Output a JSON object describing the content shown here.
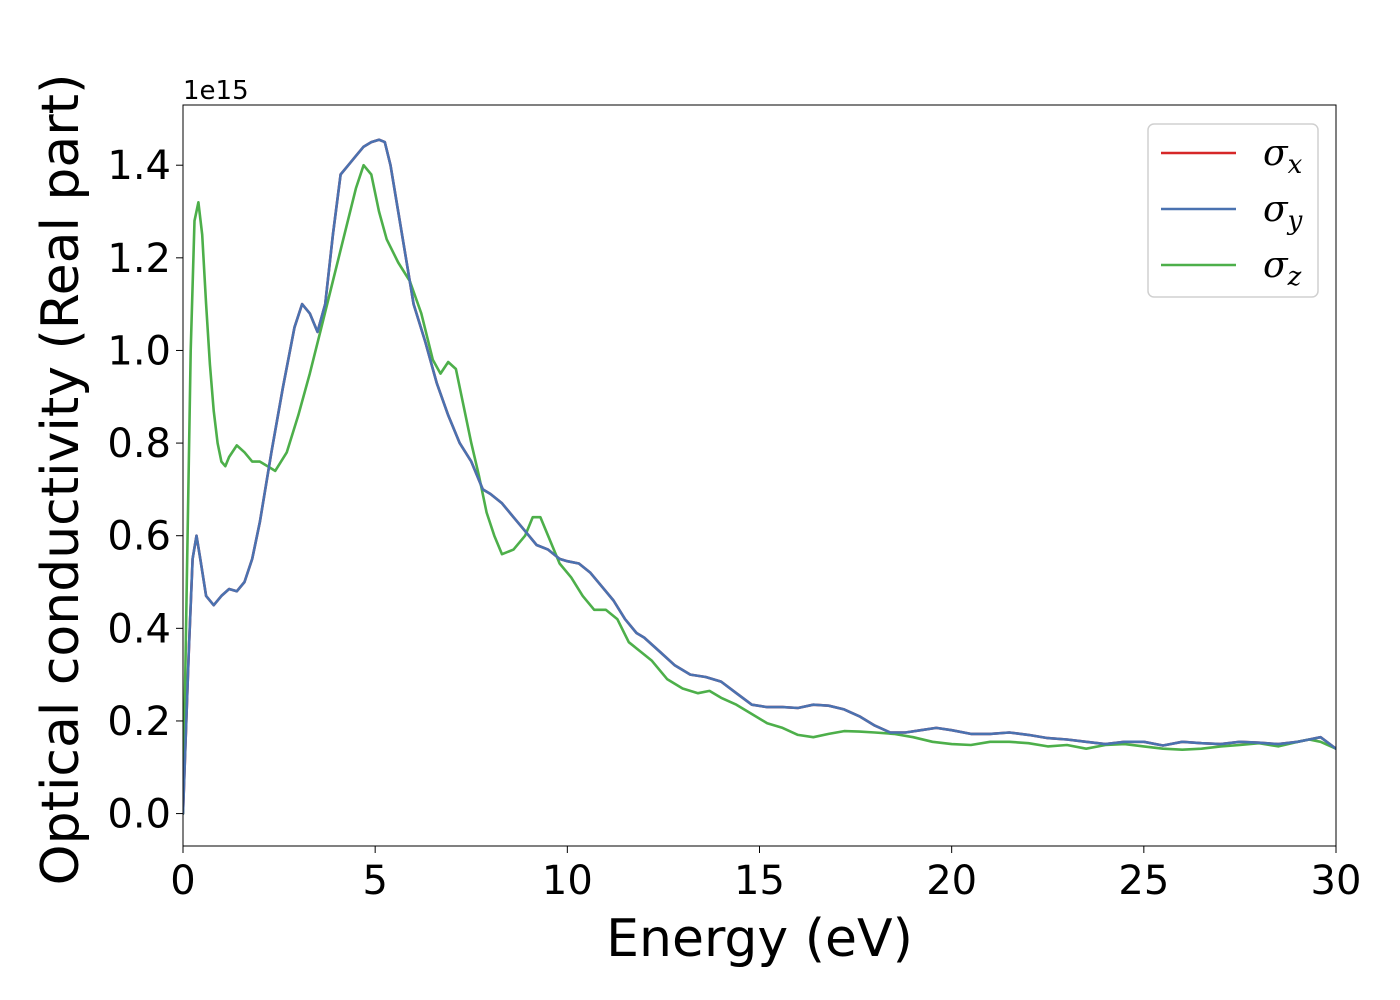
{
  "chart_data": {
    "type": "line",
    "xlabel": "Energy (eV)",
    "ylabel": "Optical conductivity (Real part)",
    "y_offset_text": "1e15",
    "xlim": [
      0,
      30
    ],
    "ylim": [
      -0.07,
      1.53
    ],
    "x_ticks": [
      0,
      5,
      10,
      15,
      20,
      25,
      30
    ],
    "x_tick_labels": [
      "0",
      "5",
      "10",
      "15",
      "20",
      "25",
      "30"
    ],
    "y_ticks": [
      0.0,
      0.2,
      0.4,
      0.6,
      0.8,
      1.0,
      1.2,
      1.4
    ],
    "y_tick_labels": [
      "0.0",
      "0.2",
      "0.4",
      "0.6",
      "0.8",
      "1.0",
      "1.2",
      "1.4"
    ],
    "grid": false,
    "legend_position": "top-right",
    "series": [
      {
        "name": "σ",
        "subscript": "x",
        "color": "#d62728",
        "x": [
          0,
          0.15,
          0.25,
          0.35,
          0.45,
          0.6,
          0.8,
          1.0,
          1.2,
          1.4,
          1.6,
          1.8,
          2.0,
          2.3,
          2.6,
          2.9,
          3.1,
          3.3,
          3.5,
          3.7,
          3.9,
          4.1,
          4.3,
          4.5,
          4.7,
          4.9,
          5.1,
          5.25,
          5.4,
          5.6,
          5.8,
          6.0,
          6.3,
          6.6,
          6.9,
          7.2,
          7.5,
          7.8,
          8.0,
          8.3,
          8.6,
          8.9,
          9.2,
          9.5,
          9.8,
          10.0,
          10.3,
          10.6,
          10.9,
          11.2,
          11.5,
          11.8,
          12.0,
          12.4,
          12.8,
          13.2,
          13.6,
          14.0,
          14.4,
          14.8,
          15.2,
          15.6,
          16.0,
          16.4,
          16.8,
          17.2,
          17.6,
          18.0,
          18.4,
          18.8,
          19.2,
          19.6,
          20.0,
          20.5,
          21.0,
          21.5,
          22.0,
          22.5,
          23.0,
          23.5,
          24.0,
          24.5,
          25.0,
          25.5,
          26.0,
          26.5,
          27.0,
          27.5,
          28.0,
          28.5,
          29.0,
          29.3,
          29.6,
          30.0
        ],
        "y": [
          0.0,
          0.35,
          0.55,
          0.6,
          0.55,
          0.47,
          0.45,
          0.47,
          0.485,
          0.48,
          0.5,
          0.55,
          0.63,
          0.78,
          0.92,
          1.05,
          1.1,
          1.08,
          1.04,
          1.1,
          1.25,
          1.38,
          1.4,
          1.42,
          1.44,
          1.45,
          1.455,
          1.45,
          1.4,
          1.3,
          1.2,
          1.1,
          1.02,
          0.93,
          0.86,
          0.8,
          0.76,
          0.7,
          0.69,
          0.67,
          0.64,
          0.61,
          0.58,
          0.57,
          0.55,
          0.545,
          0.54,
          0.52,
          0.49,
          0.46,
          0.42,
          0.39,
          0.38,
          0.35,
          0.32,
          0.3,
          0.295,
          0.285,
          0.26,
          0.235,
          0.23,
          0.23,
          0.228,
          0.235,
          0.233,
          0.225,
          0.21,
          0.19,
          0.175,
          0.175,
          0.18,
          0.185,
          0.18,
          0.172,
          0.172,
          0.175,
          0.17,
          0.163,
          0.16,
          0.155,
          0.15,
          0.155,
          0.155,
          0.147,
          0.155,
          0.152,
          0.15,
          0.155,
          0.153,
          0.15,
          0.155,
          0.16,
          0.165,
          0.14
        ]
      },
      {
        "name": "σ",
        "subscript": "y",
        "color": "#4a72b0",
        "x": [
          0,
          0.15,
          0.25,
          0.35,
          0.45,
          0.6,
          0.8,
          1.0,
          1.2,
          1.4,
          1.6,
          1.8,
          2.0,
          2.3,
          2.6,
          2.9,
          3.1,
          3.3,
          3.5,
          3.7,
          3.9,
          4.1,
          4.3,
          4.5,
          4.7,
          4.9,
          5.1,
          5.25,
          5.4,
          5.6,
          5.8,
          6.0,
          6.3,
          6.6,
          6.9,
          7.2,
          7.5,
          7.8,
          8.0,
          8.3,
          8.6,
          8.9,
          9.2,
          9.5,
          9.8,
          10.0,
          10.3,
          10.6,
          10.9,
          11.2,
          11.5,
          11.8,
          12.0,
          12.4,
          12.8,
          13.2,
          13.6,
          14.0,
          14.4,
          14.8,
          15.2,
          15.6,
          16.0,
          16.4,
          16.8,
          17.2,
          17.6,
          18.0,
          18.4,
          18.8,
          19.2,
          19.6,
          20.0,
          20.5,
          21.0,
          21.5,
          22.0,
          22.5,
          23.0,
          23.5,
          24.0,
          24.5,
          25.0,
          25.5,
          26.0,
          26.5,
          27.0,
          27.5,
          28.0,
          28.5,
          29.0,
          29.3,
          29.6,
          30.0
        ],
        "y": [
          0.0,
          0.35,
          0.55,
          0.6,
          0.55,
          0.47,
          0.45,
          0.47,
          0.485,
          0.48,
          0.5,
          0.55,
          0.63,
          0.78,
          0.92,
          1.05,
          1.1,
          1.08,
          1.04,
          1.1,
          1.25,
          1.38,
          1.4,
          1.42,
          1.44,
          1.45,
          1.455,
          1.45,
          1.4,
          1.3,
          1.2,
          1.1,
          1.02,
          0.93,
          0.86,
          0.8,
          0.76,
          0.7,
          0.69,
          0.67,
          0.64,
          0.61,
          0.58,
          0.57,
          0.55,
          0.545,
          0.54,
          0.52,
          0.49,
          0.46,
          0.42,
          0.39,
          0.38,
          0.35,
          0.32,
          0.3,
          0.295,
          0.285,
          0.26,
          0.235,
          0.23,
          0.23,
          0.228,
          0.235,
          0.233,
          0.225,
          0.21,
          0.19,
          0.175,
          0.175,
          0.18,
          0.185,
          0.18,
          0.172,
          0.172,
          0.175,
          0.17,
          0.163,
          0.16,
          0.155,
          0.15,
          0.155,
          0.155,
          0.147,
          0.155,
          0.152,
          0.15,
          0.155,
          0.153,
          0.15,
          0.155,
          0.16,
          0.165,
          0.14
        ]
      },
      {
        "name": "σ",
        "subscript": "z",
        "color": "#4daf4a",
        "x": [
          0,
          0.1,
          0.2,
          0.3,
          0.4,
          0.5,
          0.6,
          0.7,
          0.8,
          0.9,
          1.0,
          1.1,
          1.2,
          1.4,
          1.6,
          1.8,
          2.0,
          2.2,
          2.4,
          2.7,
          3.0,
          3.3,
          3.6,
          3.9,
          4.2,
          4.5,
          4.7,
          4.9,
          5.1,
          5.3,
          5.6,
          5.9,
          6.2,
          6.5,
          6.7,
          6.9,
          7.1,
          7.3,
          7.5,
          7.7,
          7.9,
          8.1,
          8.3,
          8.6,
          8.9,
          9.1,
          9.3,
          9.5,
          9.8,
          10.1,
          10.4,
          10.7,
          11.0,
          11.3,
          11.6,
          11.9,
          12.2,
          12.6,
          13.0,
          13.4,
          13.7,
          14.0,
          14.4,
          14.8,
          15.2,
          15.6,
          16.0,
          16.4,
          16.8,
          17.2,
          17.6,
          18.0,
          18.5,
          19.0,
          19.5,
          20.0,
          20.5,
          21.0,
          21.5,
          22.0,
          22.5,
          23.0,
          23.5,
          24.0,
          24.5,
          25.0,
          25.5,
          26.0,
          26.5,
          27.0,
          27.5,
          28.0,
          28.5,
          29.0,
          29.3,
          29.6,
          30.0
        ],
        "y": [
          0.0,
          0.5,
          1.0,
          1.28,
          1.32,
          1.25,
          1.1,
          0.97,
          0.87,
          0.8,
          0.76,
          0.75,
          0.77,
          0.795,
          0.78,
          0.76,
          0.76,
          0.75,
          0.74,
          0.78,
          0.86,
          0.95,
          1.05,
          1.15,
          1.25,
          1.35,
          1.4,
          1.38,
          1.3,
          1.24,
          1.19,
          1.15,
          1.08,
          0.98,
          0.95,
          0.975,
          0.96,
          0.88,
          0.8,
          0.73,
          0.65,
          0.6,
          0.56,
          0.57,
          0.6,
          0.64,
          0.64,
          0.6,
          0.54,
          0.51,
          0.47,
          0.44,
          0.44,
          0.42,
          0.37,
          0.35,
          0.33,
          0.29,
          0.27,
          0.26,
          0.265,
          0.25,
          0.235,
          0.215,
          0.195,
          0.185,
          0.17,
          0.165,
          0.172,
          0.178,
          0.177,
          0.175,
          0.172,
          0.165,
          0.155,
          0.15,
          0.148,
          0.155,
          0.155,
          0.152,
          0.145,
          0.148,
          0.14,
          0.148,
          0.15,
          0.145,
          0.14,
          0.138,
          0.14,
          0.145,
          0.148,
          0.152,
          0.145,
          0.155,
          0.16,
          0.155,
          0.14
        ]
      }
    ]
  }
}
